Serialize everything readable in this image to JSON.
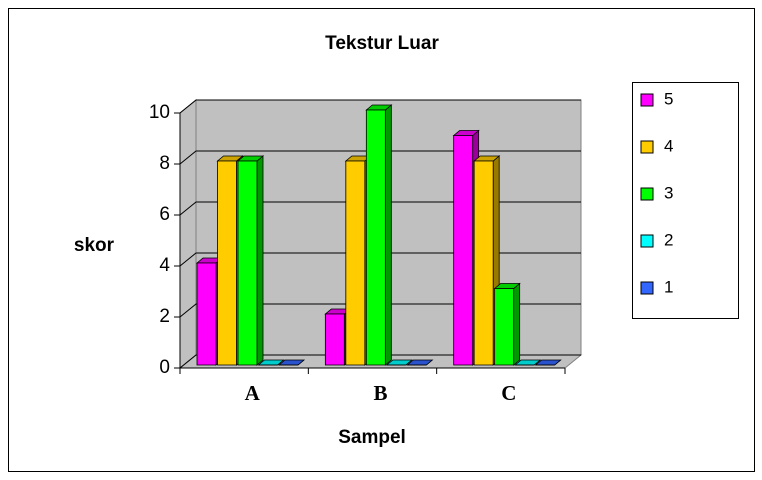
{
  "chart_data": {
    "type": "bar3d",
    "title": "Tekstur Luar",
    "x_label": "Sampel",
    "y_label": "skor",
    "categories": [
      "A",
      "B",
      "C"
    ],
    "series": [
      {
        "name": "5",
        "color": "#ff00ff",
        "values": [
          4,
          2,
          9
        ]
      },
      {
        "name": "4",
        "color": "#ffcc00",
        "values": [
          8,
          8,
          8
        ]
      },
      {
        "name": "3",
        "color": "#00ff00",
        "values": [
          8,
          10,
          3
        ]
      },
      {
        "name": "2",
        "color": "#00ffff",
        "values": [
          0,
          0,
          0
        ]
      },
      {
        "name": "1",
        "color": "#3366ff",
        "values": [
          0,
          0,
          0
        ]
      }
    ],
    "ylim": [
      0,
      10
    ],
    "yticks": [
      0,
      2,
      4,
      6,
      8,
      10
    ],
    "grid": true,
    "legend": "right"
  }
}
